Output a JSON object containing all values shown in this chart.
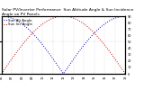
{
  "title": "Solar PV/Inverter Performance  Sun Altitude Angle & Sun Incidence Angle on PV Panels",
  "blue_label": "Sun Alt Angle",
  "red_label": "Sun Inc Angle",
  "x_start": 6.0,
  "x_end": 18.0,
  "blue_peak": 90,
  "red_peak": 90,
  "blue_color": "#0000cc",
  "red_color": "#cc0000",
  "bg_color": "#ffffff",
  "grid_color": "#aaaaaa",
  "ylim": [
    0,
    90
  ],
  "xlim": [
    6,
    18
  ],
  "title_fontsize": 3.2,
  "label_fontsize": 2.8,
  "tick_fontsize": 2.5,
  "right_yticks": [
    0,
    10,
    20,
    30,
    40,
    50,
    60,
    70,
    80,
    90
  ]
}
